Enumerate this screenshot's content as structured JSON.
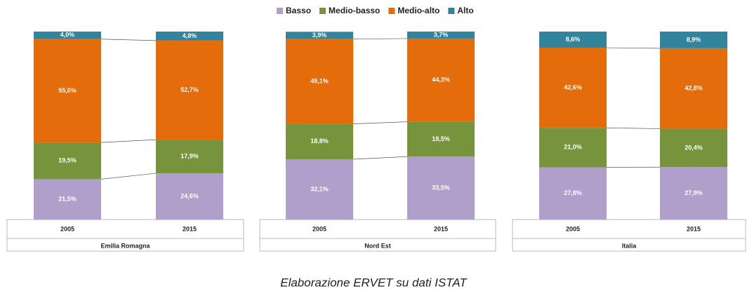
{
  "chart_data": [
    {
      "type": "bar",
      "stacked": true,
      "title": "Emilia Romagna",
      "categories": [
        "2005",
        "2015"
      ],
      "ylim": [
        0,
        100
      ],
      "series": [
        {
          "name": "Basso",
          "color": "#b09fca",
          "values": [
            21.5,
            24.6
          ],
          "value_labels": [
            "21,5%",
            "24,6%"
          ]
        },
        {
          "name": "Medio-basso",
          "color": "#77933c",
          "values": [
            19.5,
            17.9
          ],
          "value_labels": [
            "19,5%",
            "17,9%"
          ]
        },
        {
          "name": "Medio-alto",
          "color": "#e46c0a",
          "values": [
            55.0,
            52.7
          ],
          "value_labels": [
            "55,0%",
            "52,7%"
          ]
        },
        {
          "name": "Alto",
          "color": "#31849b",
          "values": [
            4.0,
            4.8
          ],
          "value_labels": [
            "4,0%",
            "4,8%"
          ]
        }
      ]
    },
    {
      "type": "bar",
      "stacked": true,
      "title": "Nord Est",
      "categories": [
        "2005",
        "2015"
      ],
      "ylim": [
        0,
        100
      ],
      "series": [
        {
          "name": "Basso",
          "color": "#b09fca",
          "values": [
            32.1,
            33.5
          ],
          "value_labels": [
            "32,1%",
            "33,5%"
          ]
        },
        {
          "name": "Medio-basso",
          "color": "#77933c",
          "values": [
            18.8,
            18.5
          ],
          "value_labels": [
            "18,8%",
            "18,5%"
          ]
        },
        {
          "name": "Medio-alto",
          "color": "#e46c0a",
          "values": [
            45.1,
            44.3
          ],
          "value_labels": [
            "45,1%",
            "44,3%"
          ]
        },
        {
          "name": "Alto",
          "color": "#31849b",
          "values": [
            3.9,
            3.7
          ],
          "value_labels": [
            "3,9%",
            "3,7%"
          ]
        }
      ]
    },
    {
      "type": "bar",
      "stacked": true,
      "title": "Italia",
      "categories": [
        "2005",
        "2015"
      ],
      "ylim": [
        0,
        100
      ],
      "series": [
        {
          "name": "Basso",
          "color": "#b09fca",
          "values": [
            27.8,
            27.9
          ],
          "value_labels": [
            "27,8%",
            "27,9%"
          ]
        },
        {
          "name": "Medio-basso",
          "color": "#77933c",
          "values": [
            21.0,
            20.4
          ],
          "value_labels": [
            "21,0%",
            "20,4%"
          ]
        },
        {
          "name": "Medio-alto",
          "color": "#e46c0a",
          "values": [
            42.6,
            42.8
          ],
          "value_labels": [
            "42,6%",
            "42,8%"
          ]
        },
        {
          "name": "Alto",
          "color": "#31849b",
          "values": [
            8.6,
            8.9
          ],
          "value_labels": [
            "8,6%",
            "8,9%"
          ]
        }
      ]
    }
  ],
  "caption": "Elaborazione ERVET su dati ISTAT"
}
